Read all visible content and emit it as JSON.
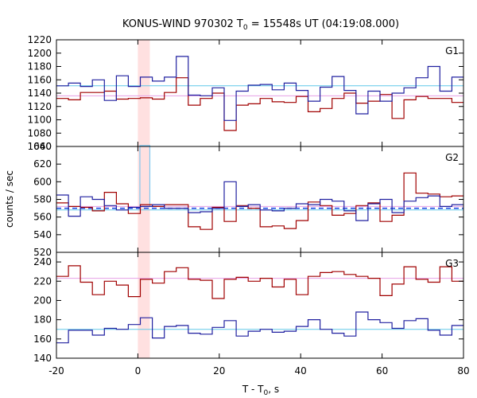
{
  "chart_data": {
    "type": "line",
    "title_main": "KONUS-WIND 970302 T",
    "title_sub": "0",
    "title_rest": " = 15548s UT (04:19:08.000)",
    "xlabel_main": "T - T",
    "xlabel_sub": "0",
    "xlabel_rest": ", s",
    "ylabel": "counts / sec",
    "xlim": [
      -20,
      80
    ],
    "xticks": [
      "-20",
      "0",
      "20",
      "40",
      "60",
      "80"
    ],
    "xtick_values": [
      -20,
      0,
      20,
      40,
      60,
      80
    ],
    "highlight_interval": [
      0,
      2.944
    ],
    "highlight_color": "#ffe0e0",
    "grid": false,
    "colors": {
      "series_a": "#a00000",
      "series_b": "#2020a0",
      "level_pink": "#e6a0e6",
      "level_cyan": "#60c8e8",
      "level_blue_dashed": "#1040e0",
      "peak_cyan": "#80c8f0"
    },
    "panels": [
      {
        "label": "G1",
        "ylim": [
          1060,
          1220
        ],
        "yticks": [
          1060,
          1080,
          1100,
          1120,
          1140,
          1160,
          1180,
          1200,
          1220
        ],
        "levels": [
          {
            "color_key": "level_cyan",
            "y": 1151,
            "dashed": false
          },
          {
            "color_key": "level_pink",
            "y": 1136,
            "dashed": false
          }
        ],
        "series": [
          {
            "color_key": "series_a",
            "x0": -20,
            "dx": 2.944,
            "values": [
              1132,
              1130,
              1141,
              1141,
              1143,
              1131,
              1132,
              1133,
              1131,
              1141,
              1163,
              1122,
              1132,
              1140,
              1084,
              1122,
              1124,
              1132,
              1127,
              1126,
              1135,
              1112,
              1117,
              1132,
              1140,
              1125,
              1128,
              1138,
              1102,
              1130,
              1135,
              1132,
              1132,
              1126,
              1161
            ]
          },
          {
            "color_key": "series_b",
            "x0": -20,
            "dx": 2.944,
            "values": [
              1151,
              1155,
              1150,
              1160,
              1129,
              1166,
              1150,
              1164,
              1158,
              1164,
              1195,
              1137,
              1136,
              1148,
              1099,
              1143,
              1152,
              1153,
              1145,
              1155,
              1144,
              1128,
              1149,
              1165,
              1144,
              1109,
              1143,
              1128,
              1140,
              1148,
              1163,
              1180,
              1143,
              1164,
              1141
            ]
          }
        ]
      },
      {
        "label": "G2",
        "ylim": [
          520,
          640
        ],
        "yticks": [
          520,
          540,
          560,
          580,
          600,
          620,
          640
        ],
        "levels": [
          {
            "color_key": "level_pink",
            "y": 572,
            "dashed": false
          },
          {
            "color_key": "level_cyan",
            "y": 568,
            "dashed": false
          },
          {
            "color_key": "level_blue_dashed",
            "y": 570,
            "dashed": true
          }
        ],
        "peak": {
          "color_key": "peak_cyan",
          "x0": 0.5,
          "x1": 2.944,
          "y": 641,
          "base": 572
        },
        "series": [
          {
            "color_key": "series_a",
            "x0": -20,
            "dx": 2.944,
            "values": [
              576,
              572,
              571,
              567,
              588,
              575,
              564,
              574,
              572,
              574,
              574,
              549,
              546,
              571,
              555,
              573,
              570,
              549,
              550,
              547,
              556,
              577,
              573,
              562,
              564,
              573,
              576,
              555,
              562,
              610,
              587,
              586,
              583,
              584,
              573
            ]
          },
          {
            "color_key": "series_b",
            "x0": -20,
            "dx": 2.944,
            "values": [
              585,
              561,
              583,
              580,
              573,
              568,
              571,
              572,
              574,
              570,
              570,
              565,
              566,
              570,
              600,
              572,
              574,
              568,
              567,
              570,
              575,
              574,
              580,
              578,
              567,
              556,
              575,
              580,
              565,
              578,
              582,
              584,
              572,
              574,
              587
            ]
          }
        ]
      },
      {
        "label": "G3",
        "ylim": [
          140,
          250
        ],
        "yticks": [
          140,
          160,
          180,
          200,
          220,
          240
        ],
        "levels": [
          {
            "color_key": "level_pink",
            "y": 223,
            "dashed": false
          },
          {
            "color_key": "level_cyan",
            "y": 170,
            "dashed": false
          }
        ],
        "series": [
          {
            "color_key": "series_a",
            "x0": -20,
            "dx": 2.944,
            "values": [
              225,
              236,
              219,
              206,
              220,
              216,
              204,
              222,
              218,
              230,
              234,
              222,
              221,
              202,
              222,
              224,
              220,
              223,
              214,
              222,
              206,
              225,
              229,
              230,
              227,
              225,
              223,
              205,
              217,
              235,
              222,
              219,
              235,
              220,
              217
            ]
          },
          {
            "color_key": "series_b",
            "x0": -20,
            "dx": 2.944,
            "values": [
              156,
              169,
              169,
              164,
              171,
              170,
              175,
              182,
              161,
              173,
              174,
              166,
              165,
              172,
              179,
              163,
              168,
              170,
              167,
              168,
              173,
              180,
              170,
              166,
              163,
              188,
              180,
              177,
              171,
              179,
              181,
              169,
              164,
              174,
              172
            ]
          }
        ]
      }
    ]
  }
}
